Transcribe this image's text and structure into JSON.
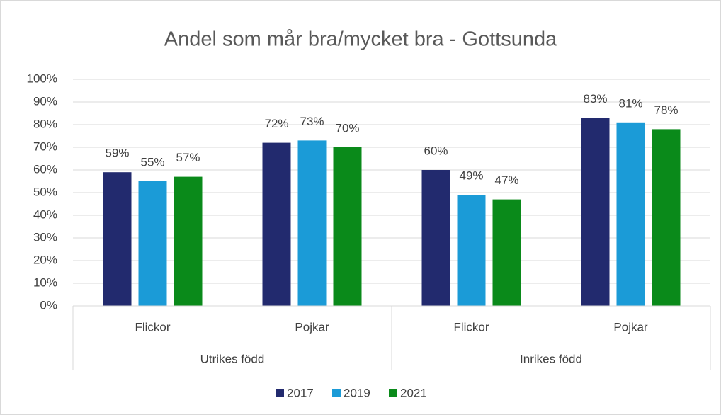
{
  "chart_data": {
    "type": "bar",
    "title": "Andel som mår bra/mycket bra - Gottsunda",
    "categories": [
      "Flickor",
      "Pojkar",
      "Flickor",
      "Pojkar"
    ],
    "groups": [
      "Utrikes född",
      "Inrikes född"
    ],
    "series": [
      {
        "name": "2017",
        "color": "#222a6e",
        "values": [
          59,
          72,
          60,
          83
        ],
        "value_labels": [
          "59%",
          "72%",
          "60%",
          "83%"
        ]
      },
      {
        "name": "2019",
        "color": "#1b9bd7",
        "values": [
          55,
          73,
          49,
          81
        ],
        "value_labels": [
          "55%",
          "73%",
          "49%",
          "81%"
        ]
      },
      {
        "name": "2021",
        "color": "#0a8a1a",
        "values": [
          57,
          70,
          47,
          78
        ],
        "value_labels": [
          "57%",
          "70%",
          "47%",
          "78%"
        ]
      }
    ],
    "ylim": [
      0,
      100
    ],
    "yticks": [
      {
        "value": 0,
        "label": "0%"
      },
      {
        "value": 10,
        "label": "10%"
      },
      {
        "value": 20,
        "label": "20%"
      },
      {
        "value": 30,
        "label": "30%"
      },
      {
        "value": 40,
        "label": "40%"
      },
      {
        "value": 50,
        "label": "50%"
      },
      {
        "value": 60,
        "label": "60%"
      },
      {
        "value": 70,
        "label": "70%"
      },
      {
        "value": 80,
        "label": "80%"
      },
      {
        "value": 90,
        "label": "90%"
      },
      {
        "value": 100,
        "label": "100%"
      }
    ],
    "grid": true,
    "legend": "bottom"
  }
}
